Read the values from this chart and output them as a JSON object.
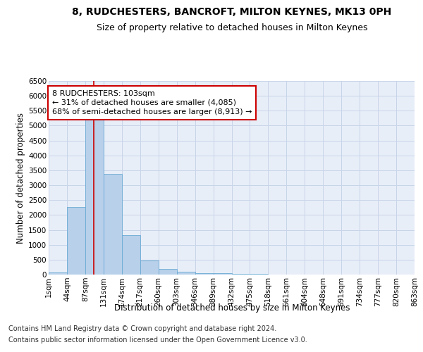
{
  "title": "8, RUDCHESTERS, BANCROFT, MILTON KEYNES, MK13 0PH",
  "subtitle": "Size of property relative to detached houses in Milton Keynes",
  "xlabel": "Distribution of detached houses by size in Milton Keynes",
  "ylabel": "Number of detached properties",
  "footer_line1": "Contains HM Land Registry data © Crown copyright and database right 2024.",
  "footer_line2": "Contains public sector information licensed under the Open Government Licence v3.0.",
  "annotation_line1": "8 RUDCHESTERS: 103sqm",
  "annotation_line2": "← 31% of detached houses are smaller (4,085)",
  "annotation_line3": "68% of semi-detached houses are larger (8,913) →",
  "bar_values": [
    75,
    2280,
    5420,
    3370,
    1320,
    480,
    200,
    95,
    55,
    40,
    30,
    20,
    10,
    5,
    5,
    5,
    5,
    5,
    5,
    5
  ],
  "x_labels": [
    "1sqm",
    "44sqm",
    "87sqm",
    "131sqm",
    "174sqm",
    "217sqm",
    "260sqm",
    "303sqm",
    "346sqm",
    "389sqm",
    "432sqm",
    "475sqm",
    "518sqm",
    "561sqm",
    "604sqm",
    "648sqm",
    "691sqm",
    "734sqm",
    "777sqm",
    "820sqm",
    "863sqm"
  ],
  "bar_color": "#b8d0ea",
  "bar_edge_color": "#6aaad4",
  "vline_color": "#cc0000",
  "vline_pos": 2.466,
  "ylim": [
    0,
    6500
  ],
  "yticks": [
    0,
    500,
    1000,
    1500,
    2000,
    2500,
    3000,
    3500,
    4000,
    4500,
    5000,
    5500,
    6000,
    6500
  ],
  "grid_color": "#c8d4e8",
  "bg_color": "#e8eef8",
  "annotation_box_color": "#cc0000",
  "title_fontsize": 10,
  "subtitle_fontsize": 9,
  "axis_label_fontsize": 8.5,
  "tick_fontsize": 7.5,
  "annotation_fontsize": 8,
  "footer_fontsize": 7
}
